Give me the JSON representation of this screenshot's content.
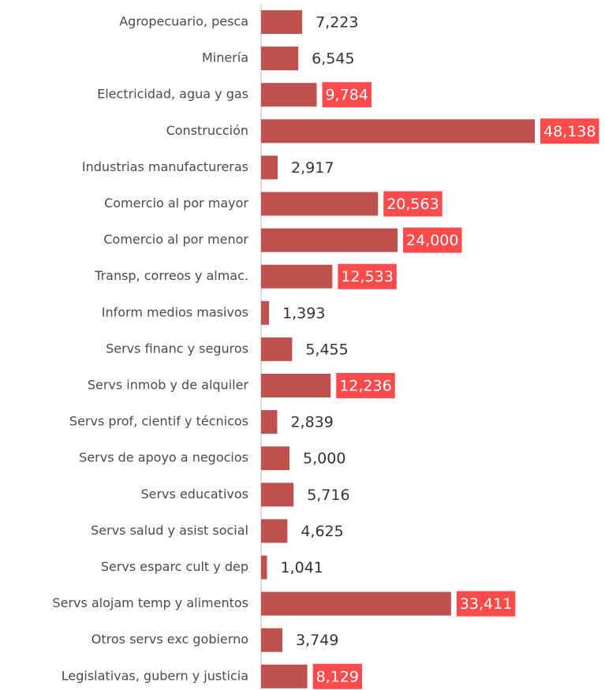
{
  "chart_data": {
    "type": "bar",
    "orientation": "horizontal",
    "categories": [
      "Agropecuario, pesca",
      "Minería",
      "Electricidad, agua y  gas",
      "Construcción",
      "Industrias manufactureras",
      "Comercio al por mayor",
      "Comercio al por menor",
      "Transp, correos y almac.",
      "Inform medios masivos",
      "Servs financ y seguros",
      "Servs inmob y de alquiler ",
      "Servs prof, cientif y técnicos",
      "Servs de apoyo a negocios ",
      "Servs educativos",
      "Servs salud y asist social",
      "Servs esparc cult y dep",
      "Servs alojam temp y alimentos",
      "Otros servs exc gobierno",
      "Legislativas, gubern y justicia"
    ],
    "values": [
      7223,
      6545,
      9784,
      48138,
      2917,
      20563,
      24000,
      12533,
      1393,
      5455,
      12236,
      2839,
      5000,
      5716,
      4625,
      1041,
      33411,
      3749,
      8129
    ],
    "value_labels": [
      "7,223",
      "6,545",
      "9,784",
      "48,138",
      "2,917",
      "20,563",
      "24,000",
      "12,533",
      "1,393",
      "5,455",
      "12,236",
      "2,839",
      "5,000",
      "5,716",
      "4,625",
      "1,041",
      "33,411",
      "3,749",
      "8,129"
    ],
    "color": "#c0504d",
    "label_box_color": "#ff4b4b"
  }
}
